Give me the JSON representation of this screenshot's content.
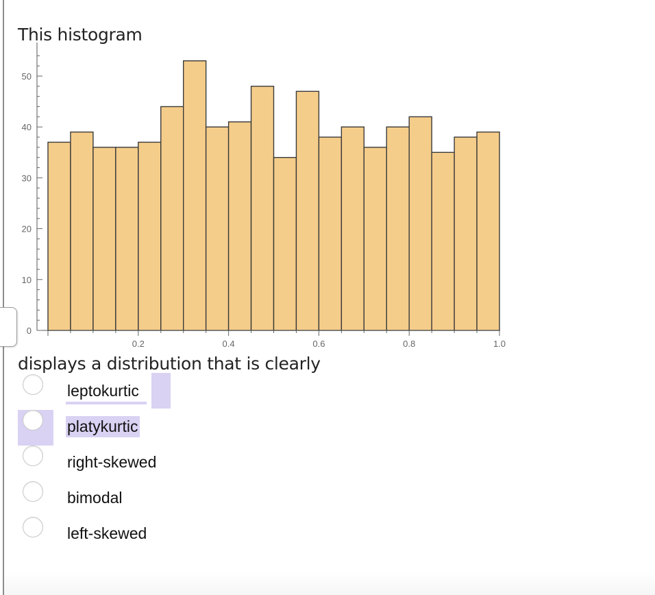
{
  "question": {
    "prompt_before": "This histogram",
    "prompt_after": "displays a distribution that is clearly"
  },
  "options": [
    {
      "label": "leptokurtic",
      "selected": false
    },
    {
      "label": "platykurtic",
      "selected": true
    },
    {
      "label": "right-skewed",
      "selected": false
    },
    {
      "label": "bimodal",
      "selected": false
    },
    {
      "label": "left-skewed",
      "selected": false
    }
  ],
  "colors": {
    "bar_fill": "#f5cd8a",
    "bar_stroke": "#3a3a3a",
    "selection": "#d9d2f3"
  },
  "chart_data": {
    "type": "bar",
    "bin_width": 0.05,
    "x": [
      0.025,
      0.075,
      0.125,
      0.175,
      0.225,
      0.275,
      0.325,
      0.375,
      0.425,
      0.475,
      0.525,
      0.575,
      0.625,
      0.675,
      0.725,
      0.775,
      0.825,
      0.875,
      0.925,
      0.975
    ],
    "values": [
      37,
      39,
      36,
      36,
      37,
      44,
      53,
      40,
      41,
      48,
      34,
      47,
      38,
      40,
      36,
      40,
      42,
      35,
      38,
      39
    ],
    "xlim": [
      0,
      1.0
    ],
    "ylim": [
      0,
      55
    ],
    "xticks": [
      "0.2",
      "0.4",
      "0.6",
      "0.8",
      "1.0"
    ],
    "yticks": [
      "0",
      "10",
      "20",
      "30",
      "40",
      "50"
    ],
    "title": "",
    "xlabel": "",
    "ylabel": ""
  }
}
